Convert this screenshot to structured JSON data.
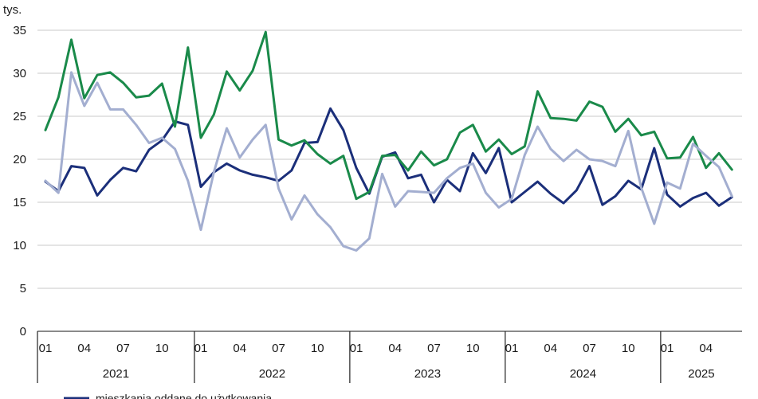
{
  "chart_data": {
    "type": "line",
    "unit_label": "tys.",
    "ylim": [
      0,
      35
    ],
    "yticks": [
      0,
      5,
      10,
      15,
      20,
      25,
      30,
      35
    ],
    "grid": true,
    "month_tick_labels": [
      "01",
      "04",
      "07",
      "10"
    ],
    "years": [
      "2021",
      "2022",
      "2023",
      "2024",
      "2025"
    ],
    "months_per_year": [
      12,
      12,
      12,
      12,
      6
    ],
    "legend": [
      {
        "label": "mieszkania oddane do użytkowania",
        "color": "#1b2f7a"
      }
    ],
    "series": [
      {
        "name": "mieszkania oddane do użytkowania",
        "color": "#1b2f7a",
        "values": [
          17.4,
          16.3,
          19.2,
          19.0,
          15.8,
          17.6,
          19.0,
          18.6,
          21.1,
          22.2,
          24.4,
          24.0,
          16.8,
          18.5,
          19.5,
          18.7,
          18.2,
          17.9,
          17.5,
          18.7,
          21.9,
          22.0,
          25.9,
          23.4,
          19.0,
          16.0,
          20.3,
          20.8,
          17.8,
          18.2,
          15.0,
          17.6,
          16.3,
          20.7,
          18.4,
          21.3,
          15.0,
          16.2,
          17.4,
          16.0,
          14.9,
          16.4,
          19.2,
          14.7,
          15.7,
          17.5,
          16.5,
          21.3,
          15.9,
          14.5,
          15.5,
          16.1,
          14.6,
          15.6
        ]
      },
      {
        "color": "#1a8a4a",
        "values": [
          23.4,
          27.2,
          33.9,
          27.1,
          29.8,
          30.1,
          28.9,
          27.2,
          27.4,
          28.8,
          23.8,
          33.0,
          22.5,
          25.2,
          30.2,
          28.0,
          30.3,
          34.8,
          22.3,
          21.6,
          22.2,
          20.6,
          19.5,
          20.4,
          15.4,
          16.2,
          20.4,
          20.5,
          18.7,
          20.9,
          19.3,
          20.0,
          23.1,
          24.0,
          20.9,
          22.3,
          20.6,
          21.5,
          27.9,
          24.8,
          24.7,
          24.5,
          26.7,
          26.1,
          23.2,
          24.7,
          22.8,
          23.2,
          20.1,
          20.2,
          22.6,
          19.0,
          20.7,
          18.8
        ]
      },
      {
        "color": "#a3aed0",
        "values": [
          17.5,
          16.1,
          30.1,
          26.2,
          28.9,
          25.8,
          25.8,
          24.0,
          21.9,
          22.5,
          21.2,
          17.5,
          11.8,
          18.5,
          23.6,
          20.2,
          22.3,
          24.0,
          16.6,
          13.0,
          15.8,
          13.6,
          12.1,
          9.9,
          9.4,
          10.8,
          18.3,
          14.5,
          16.3,
          16.2,
          16.1,
          17.8,
          19.0,
          19.5,
          16.1,
          14.4,
          15.4,
          20.5,
          23.8,
          21.2,
          19.8,
          21.1,
          20.0,
          19.8,
          19.2,
          23.3,
          16.7,
          12.5,
          17.3,
          16.6,
          21.8,
          20.4,
          19.1,
          15.7
        ]
      }
    ]
  }
}
